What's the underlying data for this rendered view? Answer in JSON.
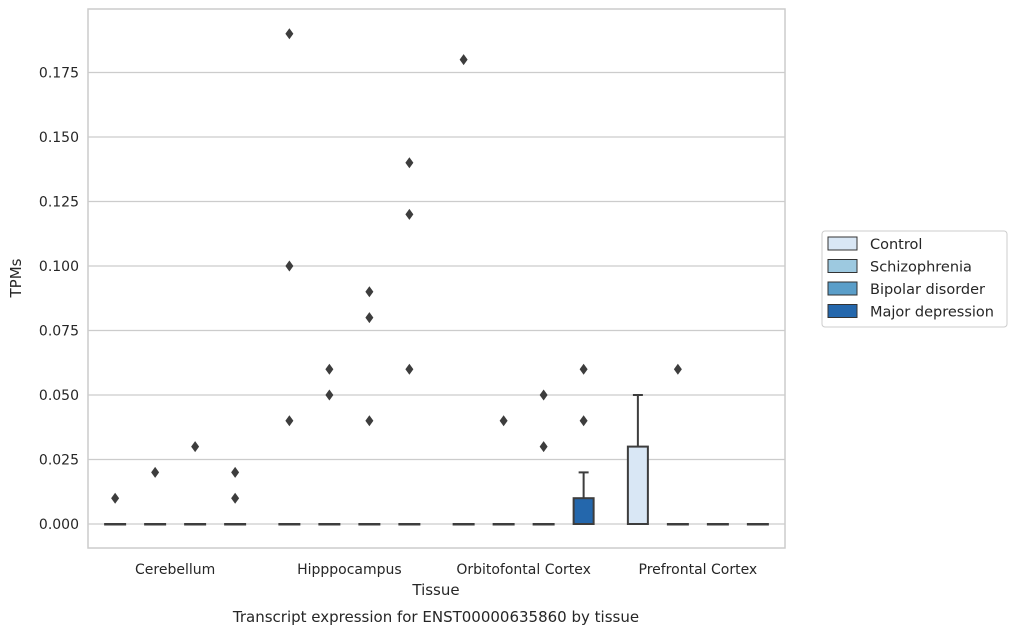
{
  "chart_data": {
    "type": "box",
    "title": "Transcript expression for ENST00000635860 by tissue",
    "xlabel": "Tissue",
    "ylabel": "TPMs",
    "ylim": [
      -0.0095,
      0.1985
    ],
    "yticks": [
      "0.000",
      "0.025",
      "0.050",
      "0.075",
      "0.100",
      "0.125",
      "0.150",
      "0.175"
    ],
    "grid": true,
    "legend_position": "right",
    "categories": [
      "Cerebellum",
      "Hipppocampus",
      "Orbitofontal Cortex",
      "Prefrontal Cortex"
    ],
    "series": [
      {
        "name": "Control",
        "color": "#d9e7f5"
      },
      {
        "name": "Schizophrenia",
        "color": "#9dc9e0"
      },
      {
        "name": "Bipolar disorder",
        "color": "#5a9ec9"
      },
      {
        "name": "Major depression",
        "color": "#2467ac"
      }
    ],
    "boxes": [
      {
        "category": "Cerebellum",
        "series": "Control",
        "q1": 0,
        "median": 0,
        "q3": 0,
        "whisker_low": 0,
        "whisker_high": 0,
        "outliers": [
          0.01
        ]
      },
      {
        "category": "Cerebellum",
        "series": "Schizophrenia",
        "q1": 0,
        "median": 0,
        "q3": 0,
        "whisker_low": 0,
        "whisker_high": 0,
        "outliers": [
          0.02
        ]
      },
      {
        "category": "Cerebellum",
        "series": "Bipolar disorder",
        "q1": 0,
        "median": 0,
        "q3": 0,
        "whisker_low": 0,
        "whisker_high": 0,
        "outliers": [
          0.03
        ]
      },
      {
        "category": "Cerebellum",
        "series": "Major depression",
        "q1": 0,
        "median": 0,
        "q3": 0,
        "whisker_low": 0,
        "whisker_high": 0,
        "outliers": [
          0.01,
          0.02
        ]
      },
      {
        "category": "Hipppocampus",
        "series": "Control",
        "q1": 0,
        "median": 0,
        "q3": 0,
        "whisker_low": 0,
        "whisker_high": 0,
        "outliers": [
          0.04,
          0.1,
          0.19
        ]
      },
      {
        "category": "Hipppocampus",
        "series": "Schizophrenia",
        "q1": 0,
        "median": 0,
        "q3": 0,
        "whisker_low": 0,
        "whisker_high": 0,
        "outliers": [
          0.05,
          0.06
        ]
      },
      {
        "category": "Hipppocampus",
        "series": "Bipolar disorder",
        "q1": 0,
        "median": 0,
        "q3": 0,
        "whisker_low": 0,
        "whisker_high": 0,
        "outliers": [
          0.04,
          0.08,
          0.09
        ]
      },
      {
        "category": "Hipppocampus",
        "series": "Major depression",
        "q1": 0,
        "median": 0,
        "q3": 0,
        "whisker_low": 0,
        "whisker_high": 0,
        "outliers": [
          0.06,
          0.12,
          0.14
        ]
      },
      {
        "category": "Orbitofontal Cortex",
        "series": "Control",
        "q1": 0,
        "median": 0,
        "q3": 0,
        "whisker_low": 0,
        "whisker_high": 0,
        "outliers": [
          0.18
        ]
      },
      {
        "category": "Orbitofontal Cortex",
        "series": "Schizophrenia",
        "q1": 0,
        "median": 0,
        "q3": 0,
        "whisker_low": 0,
        "whisker_high": 0,
        "outliers": [
          0.04
        ]
      },
      {
        "category": "Orbitofontal Cortex",
        "series": "Bipolar disorder",
        "q1": 0,
        "median": 0,
        "q3": 0,
        "whisker_low": 0,
        "whisker_high": 0,
        "outliers": [
          0.03,
          0.05
        ]
      },
      {
        "category": "Orbitofontal Cortex",
        "series": "Major depression",
        "q1": 0,
        "median": 0,
        "q3": 0.01,
        "whisker_low": 0,
        "whisker_high": 0.02,
        "outliers": [
          0.04,
          0.06
        ]
      },
      {
        "category": "Prefrontal Cortex",
        "series": "Control",
        "q1": 0,
        "median": 0,
        "q3": 0.03,
        "whisker_low": 0,
        "whisker_high": 0.05,
        "outliers": []
      },
      {
        "category": "Prefrontal Cortex",
        "series": "Schizophrenia",
        "q1": 0,
        "median": 0,
        "q3": 0,
        "whisker_low": 0,
        "whisker_high": 0,
        "outliers": [
          0.06
        ]
      },
      {
        "category": "Prefrontal Cortex",
        "series": "Bipolar disorder",
        "q1": 0,
        "median": 0,
        "q3": 0,
        "whisker_low": 0,
        "whisker_high": 0,
        "outliers": []
      },
      {
        "category": "Prefrontal Cortex",
        "series": "Major depression",
        "q1": 0,
        "median": 0,
        "q3": 0,
        "whisker_low": 0,
        "whisker_high": 0,
        "outliers": []
      }
    ]
  }
}
